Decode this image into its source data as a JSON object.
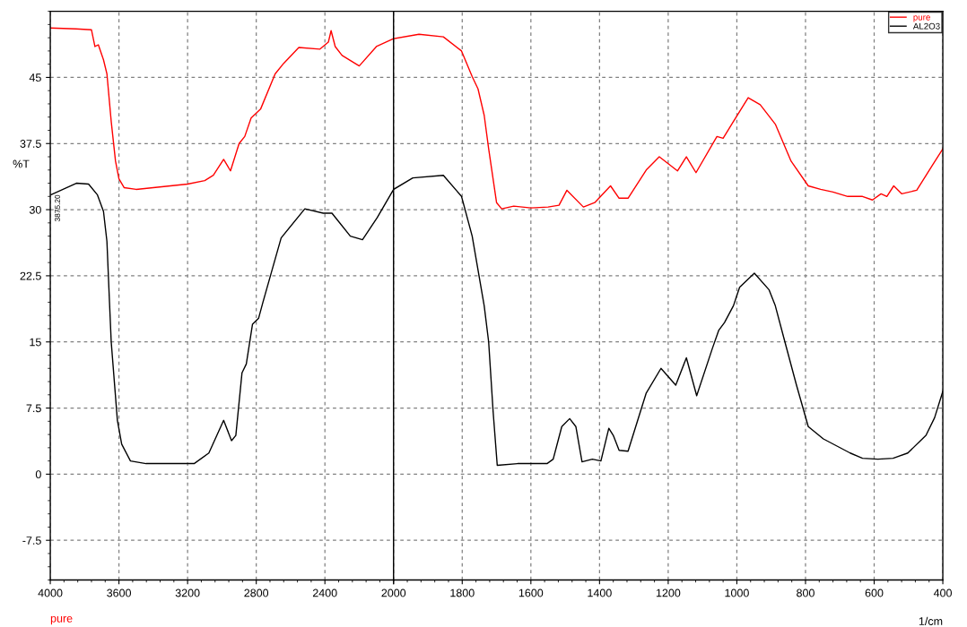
{
  "chart_data": [
    {
      "type": "line",
      "ylabel": "%T",
      "xlim": [
        4000,
        2000
      ],
      "xticks": [
        4000,
        3600,
        3200,
        2800,
        2400,
        2000
      ],
      "ylim": [
        -12,
        52.5
      ],
      "yticks": [
        -7.5,
        0,
        7.5,
        15,
        22.5,
        30,
        37.5,
        45
      ],
      "grid": true,
      "legend": false,
      "marker": "none",
      "line_style": "solid",
      "annotations": [
        "pure",
        {
          "text": "3875.20",
          "x": 3975,
          "y": 31.7
        }
      ],
      "series": [
        {
          "color": "#ff0000",
          "x": [
            4000,
            3850,
            3760,
            3740,
            3720,
            3690,
            3670,
            3645,
            3620,
            3600,
            3570,
            3500,
            3200,
            3100,
            3050,
            2990,
            2950,
            2900,
            2867,
            2830,
            2775,
            2690,
            2640,
            2552,
            2430,
            2380,
            2364,
            2340,
            2300,
            2200,
            2100,
            2000
          ],
          "values": [
            50.6,
            50.5,
            50.4,
            48.5,
            48.7,
            47,
            45.4,
            40,
            35.5,
            33.5,
            32.5,
            32.3,
            32.9,
            33.3,
            33.9,
            35.7,
            34.4,
            37.5,
            38.3,
            40.4,
            41.4,
            45.4,
            46.6,
            48.4,
            48.2,
            49,
            50.3,
            48.5,
            47.5,
            46.3,
            48.5,
            49.4
          ]
        },
        {
          "color": "#000000",
          "x": [
            3995,
            3848,
            3777,
            3726,
            3690,
            3670,
            3655,
            3645,
            3609,
            3584,
            3533,
            3442,
            3162,
            3076,
            2990,
            2944,
            2919,
            2883,
            2858,
            2822,
            2786,
            2761,
            2655,
            2517,
            2410,
            2359,
            2252,
            2181,
            2095,
            2000
          ],
          "values": [
            31.7,
            33.0,
            32.9,
            31.7,
            29.8,
            26.4,
            19.5,
            15.0,
            6.1,
            3.4,
            1.5,
            1.2,
            1.2,
            2.4,
            6.1,
            3.8,
            4.4,
            11.5,
            12.5,
            17.0,
            17.7,
            19.5,
            26.8,
            30.1,
            29.6,
            29.6,
            27.0,
            26.6,
            29.1,
            32.3
          ]
        }
      ]
    },
    {
      "type": "line",
      "xlabel": "1/cm",
      "xlim": [
        2000,
        400
      ],
      "xticks": [
        {
          "value": 2000,
          "label": null
        },
        1800,
        1600,
        1400,
        1200,
        1000,
        800,
        600,
        400
      ],
      "ylim": [
        -12,
        52.5
      ],
      "yticks": [
        -7.5,
        0,
        7.5,
        15,
        22.5,
        30,
        37.5,
        45
      ],
      "tick_labels": "x",
      "grid": true,
      "legend": "top right",
      "marker": "none",
      "line_style": "solid",
      "series": [
        {
          "name": "pure",
          "color": "#ff0000",
          "x": [
            2000,
            1926,
            1855,
            1802,
            1771,
            1754,
            1736,
            1723,
            1700,
            1685,
            1650,
            1600,
            1550,
            1518,
            1495,
            1447,
            1414,
            1368,
            1343,
            1317,
            1264,
            1226,
            1173,
            1147,
            1119,
            1058,
            1040,
            1010,
            967,
            932,
            888,
            842,
            792,
            756,
            720,
            677,
            634,
            605,
            580,
            563,
            543,
            520,
            476,
            431,
            400
          ],
          "values": [
            49.4,
            49.9,
            49.6,
            48,
            45.1,
            43.7,
            40.7,
            36.9,
            30.8,
            30.1,
            30.4,
            30.2,
            30.3,
            30.5,
            32.2,
            30.3,
            30.8,
            32.7,
            31.3,
            31.3,
            34.5,
            36.0,
            34.4,
            36.0,
            34.2,
            38.3,
            38.1,
            40.0,
            42.7,
            41.9,
            39.7,
            35.5,
            32.7,
            32.3,
            32.0,
            31.5,
            31.5,
            31.1,
            31.8,
            31.5,
            32.7,
            31.8,
            32.2,
            35.0,
            36.9
          ]
        },
        {
          "name": "AL2O3",
          "color": "#000000",
          "x": [
            2000,
            1944,
            1855,
            1802,
            1771,
            1736,
            1723,
            1710,
            1698,
            1639,
            1553,
            1535,
            1510,
            1487,
            1469,
            1451,
            1421,
            1396,
            1373,
            1360,
            1343,
            1317,
            1264,
            1221,
            1178,
            1147,
            1117,
            1071,
            1053,
            1036,
            1010,
            992,
            949,
            906,
            888,
            860,
            827,
            792,
            748,
            670,
            634,
            589,
            545,
            502,
            449,
            424,
            400
          ],
          "values": [
            32.3,
            33.6,
            33.9,
            31.5,
            27.0,
            19.1,
            15.0,
            7.1,
            1.0,
            1.2,
            1.2,
            1.7,
            5.4,
            6.3,
            5.4,
            1.4,
            1.7,
            1.5,
            5.2,
            4.4,
            2.7,
            2.6,
            9.2,
            12.0,
            10.1,
            13.2,
            8.9,
            14.3,
            16.3,
            17.2,
            19.1,
            21.2,
            22.8,
            20.9,
            19.1,
            15.0,
            10.2,
            5.4,
            4.0,
            2.4,
            1.8,
            1.7,
            1.8,
            2.4,
            4.4,
            6.4,
            9.4
          ]
        }
      ]
    }
  ]
}
